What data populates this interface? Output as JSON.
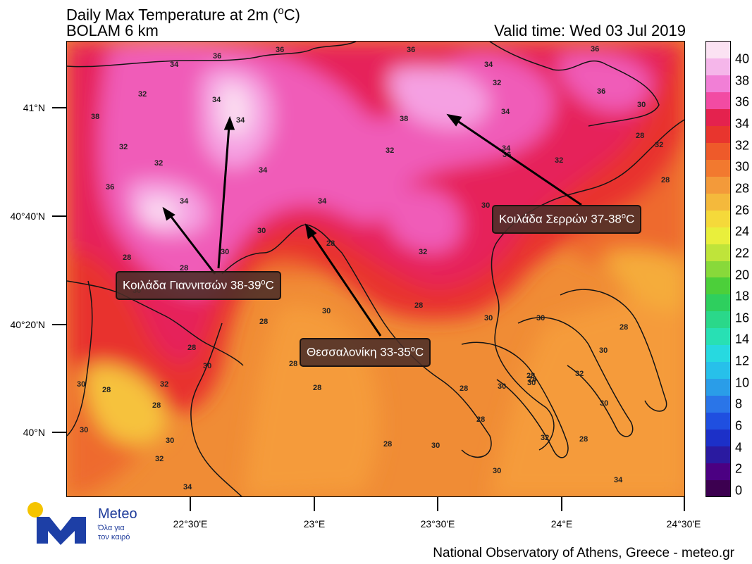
{
  "header": {
    "title_line1": "Daily Max Temperature at 2m (",
    "title_deg": "o",
    "title_unit": "C)",
    "title_line2": "BOLAM 6 km",
    "valid_time": "Valid time: Wed 03 Jul 2019"
  },
  "axes": {
    "y_labels": [
      "41°N",
      "40°40'N",
      "40°20'N",
      "40°N"
    ],
    "x_labels": [
      "22°30'E",
      "23°E",
      "23°30'E",
      "24°E",
      "24°30'E"
    ]
  },
  "legend": {
    "labels": [
      "40",
      "38",
      "36",
      "34",
      "32",
      "30",
      "28",
      "26",
      "24",
      "22",
      "20",
      "18",
      "16",
      "14",
      "12",
      "10",
      "8",
      "6",
      "4",
      "2",
      "0"
    ],
    "colors": [
      "#3c0050",
      "#4b0082",
      "#2a1aa0",
      "#1c30c8",
      "#1f4fe0",
      "#2a75e8",
      "#2a9de8",
      "#27c0ea",
      "#27d9e0",
      "#28e0b4",
      "#2ad88a",
      "#2ecf5e",
      "#4ccf3a",
      "#88d93a",
      "#bfe43a",
      "#e9ef3c",
      "#f5d93a",
      "#f4b93c",
      "#f39a3a",
      "#f2792f",
      "#ee5a2a",
      "#e8352e",
      "#e4224e",
      "#f24ba3",
      "#f17fd6",
      "#f5b6ea",
      "#fbe2f3"
    ]
  },
  "contour_labels": [
    "36",
    "34",
    "36",
    "32",
    "34",
    "34",
    "38",
    "32",
    "32",
    "36",
    "34",
    "34",
    "36",
    "36",
    "34",
    "32",
    "36",
    "30",
    "38",
    "34",
    "36",
    "28",
    "32",
    "32",
    "32",
    "34",
    "30",
    "34",
    "28",
    "30",
    "28",
    "32",
    "30",
    "28",
    "28",
    "30",
    "30",
    "28",
    "30",
    "30",
    "28",
    "30",
    "28",
    "28",
    "28",
    "30",
    "32",
    "28",
    "28",
    "30",
    "30",
    "30",
    "32",
    "28",
    "28",
    "28",
    "28",
    "30",
    "30",
    "28",
    "32",
    "28",
    "30",
    "30",
    "32",
    "34",
    "30",
    "34",
    "28"
  ],
  "callouts": {
    "serres": "Κοιλάδα Σερρών 37-38",
    "giannitsa": "Κοιλάδα Γιαννιτσών 38-39",
    "thessaloniki": "Θεσσαλονίκη 33-35",
    "degree_mark": "o",
    "unit": "C"
  },
  "logo": {
    "brand": "Meteo",
    "tagline": "Όλα για\nτον καιρό"
  },
  "footer": "National Observatory of Athens, Greece - meteo.gr"
}
